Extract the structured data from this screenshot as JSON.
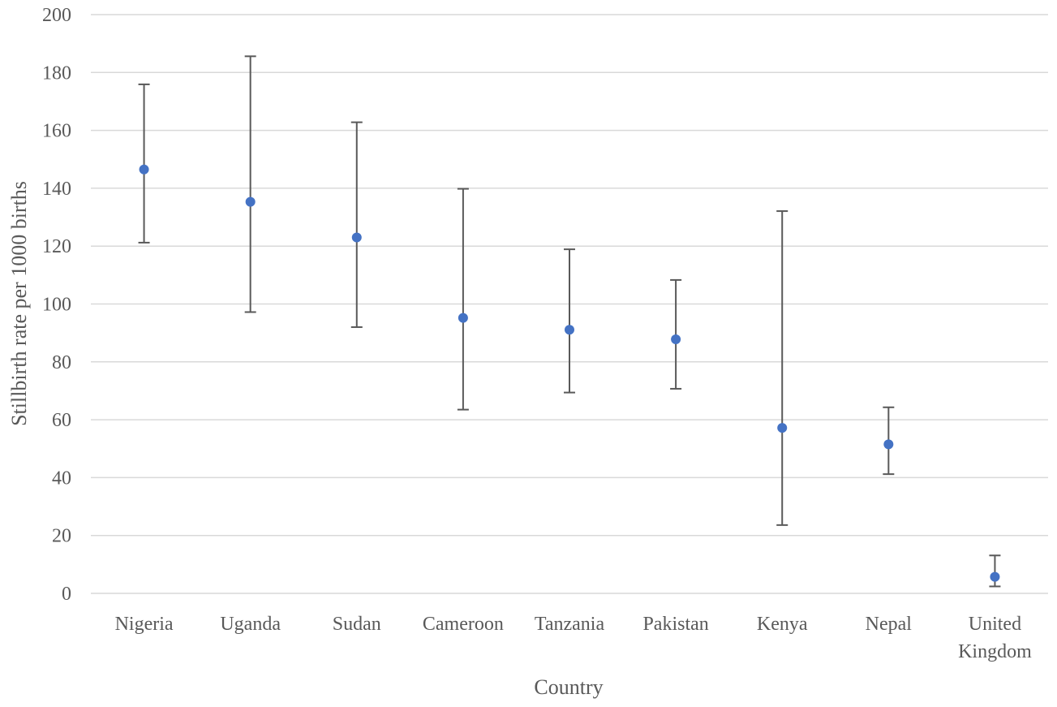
{
  "chart_data": {
    "type": "scatter",
    "xlabel": "Country",
    "ylabel": "Stillbirth rate per 1000 births",
    "ylim": [
      0,
      200
    ],
    "y_ticks": [
      0,
      20,
      40,
      60,
      80,
      100,
      120,
      140,
      160,
      180,
      200
    ],
    "grid": true,
    "categories": [
      [
        "Nigeria"
      ],
      [
        "Uganda"
      ],
      [
        "Sudan"
      ],
      [
        "Cameroon"
      ],
      [
        "Tanzania"
      ],
      [
        "Pakistan"
      ],
      [
        "Kenya"
      ],
      [
        "Nepal"
      ],
      [
        "United",
        "Kingdom"
      ]
    ],
    "series": [
      {
        "values": [
          146.5,
          135.3,
          123.0,
          95.2,
          91.1,
          87.8,
          57.2,
          51.5,
          5.7
        ],
        "lower": [
          121.2,
          97.2,
          92.0,
          63.5,
          69.4,
          70.7,
          23.6,
          41.2,
          2.4
        ],
        "upper": [
          175.9,
          185.6,
          162.8,
          139.8,
          118.9,
          108.3,
          132.1,
          64.3,
          13.1
        ]
      }
    ],
    "colors": {
      "point": "#4472c4",
      "error_bar": "#595959",
      "grid": "#d9d9d9",
      "text": "#595959"
    }
  }
}
